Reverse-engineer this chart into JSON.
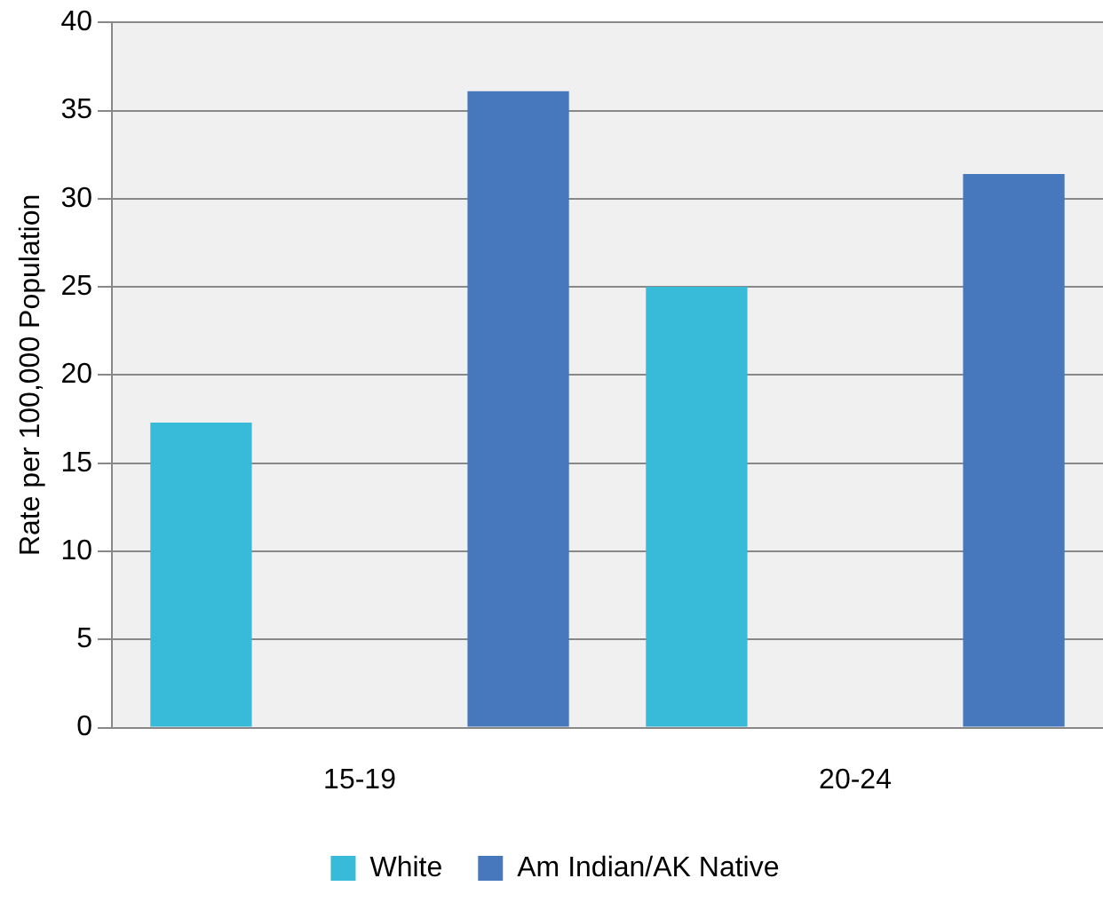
{
  "chart_data": {
    "type": "bar",
    "ylabel": "Rate per 100,000 Population",
    "categories": [
      "15-19",
      "20-24"
    ],
    "series": [
      {
        "name": "White",
        "color": "#38bad9",
        "values": [
          17.3,
          25
        ]
      },
      {
        "name": "Am Indian/AK Native",
        "color": "#4778be",
        "values": [
          36.1,
          31.4
        ]
      }
    ],
    "ylim": [
      0,
      40
    ],
    "yticks": [
      0,
      5,
      10,
      15,
      20,
      25,
      30,
      35,
      40
    ],
    "grid": "y",
    "legend": "bottom"
  }
}
